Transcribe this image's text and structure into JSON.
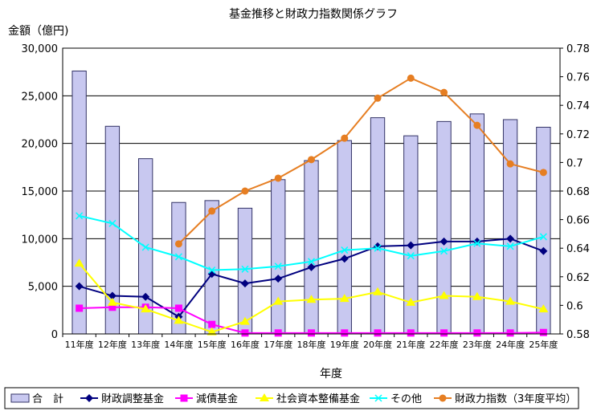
{
  "chart_data": {
    "type": "bar",
    "title": "基金推移と財政力指数関係グラフ",
    "ylabel": "金額（億円)",
    "xlabel": "年度",
    "categories": [
      "11年度",
      "12年度",
      "13年度",
      "14年度",
      "15年度",
      "16年度",
      "17年度",
      "18年度",
      "19年度",
      "20年度",
      "21年度",
      "22年度",
      "23年度",
      "24年度",
      "25年度"
    ],
    "ylim": [
      0,
      30000
    ],
    "yticks": [
      "0",
      "5,000",
      "10,000",
      "15,000",
      "20,000",
      "25,000",
      "30,000"
    ],
    "y2lim": [
      0.58,
      0.78
    ],
    "y2ticks": [
      "0.58",
      "0.6",
      "0.62",
      "0.64",
      "0.66",
      "0.68",
      "0.7",
      "0.72",
      "0.74",
      "0.76",
      "0.78"
    ],
    "legend_position": "bottom",
    "grid": true,
    "series": [
      {
        "name": "合　計",
        "kind": "bar",
        "axis": "left",
        "color": "#c8c8f0",
        "values": [
          27600,
          21800,
          18400,
          13800,
          14000,
          13200,
          16200,
          18200,
          20300,
          22700,
          20800,
          22300,
          23100,
          22500,
          21700
        ]
      },
      {
        "name": "財政調整基金",
        "kind": "line",
        "marker": "diamond",
        "axis": "left",
        "color": "#00007f",
        "values": [
          5000,
          4000,
          3900,
          1800,
          6300,
          5300,
          5800,
          7000,
          7900,
          9200,
          9300,
          9700,
          9700,
          10000,
          8700
        ]
      },
      {
        "name": "減債基金",
        "kind": "line",
        "marker": "square",
        "axis": "left",
        "color": "#ff00ff",
        "values": [
          2700,
          2800,
          2800,
          2700,
          1000,
          100,
          100,
          100,
          100,
          100,
          100,
          100,
          100,
          100,
          150
        ]
      },
      {
        "name": "社会資本整備基金",
        "kind": "line",
        "marker": "triangle",
        "axis": "left",
        "color": "#ffff00",
        "values": [
          7400,
          3300,
          2600,
          1400,
          200,
          1300,
          3400,
          3600,
          3700,
          4400,
          3300,
          4000,
          3900,
          3400,
          2600
        ]
      },
      {
        "name": "その他",
        "kind": "line",
        "marker": "x",
        "axis": "left",
        "color": "#00ffff",
        "values": [
          12400,
          11600,
          9100,
          8100,
          6700,
          6800,
          7100,
          7600,
          8800,
          9000,
          8200,
          8700,
          9500,
          9200,
          10200
        ]
      },
      {
        "name": "財政力指数（3年度平均）",
        "kind": "line",
        "marker": "circle",
        "axis": "right",
        "color": "#e67e22",
        "values": [
          null,
          null,
          null,
          0.643,
          0.666,
          0.68,
          0.689,
          0.702,
          0.717,
          0.745,
          0.759,
          0.749,
          0.726,
          0.699,
          0.693
        ]
      }
    ]
  }
}
